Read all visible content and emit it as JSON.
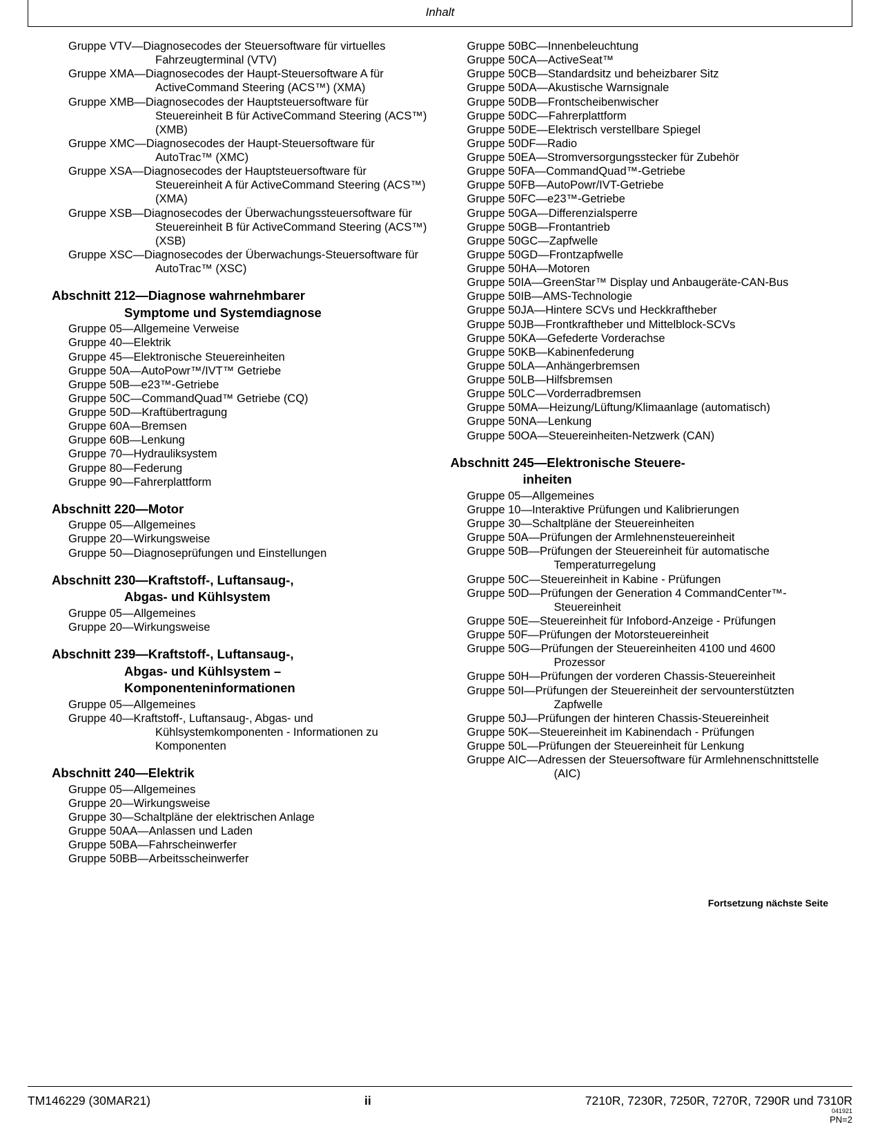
{
  "header": {
    "title": "Inhalt"
  },
  "left": {
    "topGroups": [
      "Gruppe VTV—Diagnosecodes der Steuersoftware für virtuelles Fahrzeugterminal (VTV)",
      "Gruppe XMA—Diagnosecodes der Haupt-Steuersoftware A für ActiveCommand Steering (ACS™) (XMA)",
      "Gruppe XMB—Diagnosecodes der Hauptsteuersoftware für Steuereinheit B für ActiveCommand Steering (ACS™) (XMB)",
      "Gruppe XMC—Diagnosecodes der Haupt-Steuersoftware für AutoTrac™ (XMC)",
      "Gruppe XSA—Diagnosecodes der Hauptsteuersoftware für Steuereinheit A für ActiveCommand Steering (ACS™) (XMA)",
      "Gruppe XSB—Diagnosecodes der Überwachungssteuersoftware für Steuereinheit B für ActiveCommand Steering (ACS™) (XSB)",
      "Gruppe XSC—Diagnosecodes der Überwachungs-Steuersoftware für AutoTrac™ (XSC)"
    ],
    "s212": {
      "title1": "Abschnitt 212—Diagnose wahrnehmbarer",
      "title2": "Symptome und Systemdiagnose",
      "groups": [
        "Gruppe 05—Allgemeine Verweise",
        "Gruppe 40—Elektrik",
        "Gruppe 45—Elektronische Steuereinheiten",
        "Gruppe 50A—AutoPowr™/IVT™ Getriebe",
        "Gruppe 50B—e23™-Getriebe",
        "Gruppe 50C—CommandQuad™ Getriebe (CQ)",
        "Gruppe 50D—Kraftübertragung",
        "Gruppe 60A—Bremsen",
        "Gruppe 60B—Lenkung",
        "Gruppe 70—Hydrauliksystem",
        "Gruppe 80—Federung",
        "Gruppe 90—Fahrerplattform"
      ]
    },
    "s220": {
      "title": "Abschnitt 220—Motor",
      "groups": [
        "Gruppe 05—Allgemeines",
        "Gruppe 20—Wirkungsweise",
        "Gruppe 50—Diagnoseprüfungen und Einstellungen"
      ]
    },
    "s230": {
      "title1": "Abschnitt 230—Kraftstoff-, Luftansaug-,",
      "title2": "Abgas- und Kühlsystem",
      "groups": [
        "Gruppe 05—Allgemeines",
        "Gruppe 20—Wirkungsweise"
      ]
    },
    "s239": {
      "title1": "Abschnitt 239—Kraftstoff-, Luftansaug-,",
      "title2": "Abgas- und Kühlsystem –",
      "title3": "Komponenteninformationen",
      "groups": [
        "Gruppe 05—Allgemeines",
        "Gruppe 40—Kraftstoff-, Luftansaug-, Abgas- und Kühlsystemkomponenten - Informationen zu Komponenten"
      ]
    },
    "s240": {
      "title": "Abschnitt 240—Elektrik",
      "groups": [
        "Gruppe 05—Allgemeines",
        "Gruppe 20—Wirkungsweise",
        "Gruppe 30—Schaltpläne der elektrischen Anlage",
        "Gruppe 50AA—Anlassen und Laden",
        "Gruppe 50BA—Fahrscheinwerfer",
        "Gruppe 50BB—Arbeitsscheinwerfer"
      ]
    }
  },
  "right": {
    "s240cont": [
      "Gruppe 50BC—Innenbeleuchtung",
      "Gruppe 50CA—ActiveSeat™",
      "Gruppe 50CB—Standardsitz und beheizbarer Sitz",
      "Gruppe 50DA—Akustische Warnsignale",
      "Gruppe 50DB—Frontscheibenwischer",
      "Gruppe 50DC—Fahrerplattform",
      "Gruppe 50DE—Elektrisch verstellbare Spiegel",
      "Gruppe 50DF—Radio",
      "Gruppe 50EA—Stromversorgungsstecker für Zubehör",
      "Gruppe 50FA—CommandQuad™-Getriebe",
      "Gruppe 50FB—AutoPowr/IVT-Getriebe",
      "Gruppe 50FC—e23™-Getriebe",
      "Gruppe 50GA—Differenzialsperre",
      "Gruppe 50GB—Frontantrieb",
      "Gruppe 50GC—Zapfwelle",
      "Gruppe 50GD—Frontzapfwelle",
      "Gruppe 50HA—Motoren",
      "Gruppe 50IA—GreenStar™ Display und Anbaugeräte-CAN-Bus",
      "Gruppe 50IB—AMS-Technologie",
      "Gruppe 50JA—Hintere SCVs und Heckkraftheber",
      "Gruppe 50JB—Frontkraftheber und Mittelblock-SCVs",
      "Gruppe 50KA—Gefederte Vorderachse",
      "Gruppe 50KB—Kabinenfederung",
      "Gruppe 50LA—Anhängerbremsen",
      "Gruppe 50LB—Hilfsbremsen",
      "Gruppe 50LC—Vorderradbremsen",
      "Gruppe 50MA—Heizung/Lüftung/Klimaanlage (automatisch)",
      "Gruppe 50NA—Lenkung",
      "Gruppe 50OA—Steuereinheiten-Netzwerk (CAN)"
    ],
    "s245": {
      "title1": "Abschnitt 245—Elektronische Steuere-",
      "title2": "inheiten",
      "groups": [
        "Gruppe 05—Allgemeines",
        "Gruppe 10—Interaktive Prüfungen und Kalibrierungen",
        "Gruppe 30—Schaltpläne der Steuereinheiten",
        "Gruppe 50A—Prüfungen der Armlehnensteuereinheit",
        "Gruppe 50B—Prüfungen der Steuereinheit für automatische Temperaturregelung",
        "Gruppe 50C—Steuereinheit in Kabine - Prüfungen",
        "Gruppe 50D—Prüfungen der Generation 4 CommandCenter™-Steuereinheit",
        "Gruppe 50E—Steuereinheit für Infobord-Anzeige - Prüfungen",
        "Gruppe 50F—Prüfungen der Motorsteuereinheit",
        "Gruppe 50G—Prüfungen der Steuereinheiten 4100 und 4600 Prozessor",
        "Gruppe 50H—Prüfungen der vorderen Chassis-Steuereinheit",
        "Gruppe 50I—Prüfungen der Steuereinheit der servounterstützten Zapfwelle",
        "Gruppe 50J—Prüfungen der hinteren Chassis-Steuereinheit",
        "Gruppe 50K—Steuereinheit im Kabinendach - Prüfungen",
        "Gruppe 50L—Prüfungen der Steuereinheit für Lenkung",
        "Gruppe AIC—Adressen der Steuersoftware für Armlehnenschnittstelle (AIC)"
      ]
    }
  },
  "continue": "Fortsetzung nächste Seite",
  "footer": {
    "left": "TM146229 (30MAR21)",
    "center": "ii",
    "right": "7210R, 7230R, 7250R, 7270R, 7290R und 7310R",
    "code": "041921",
    "pn": "PN=2"
  }
}
